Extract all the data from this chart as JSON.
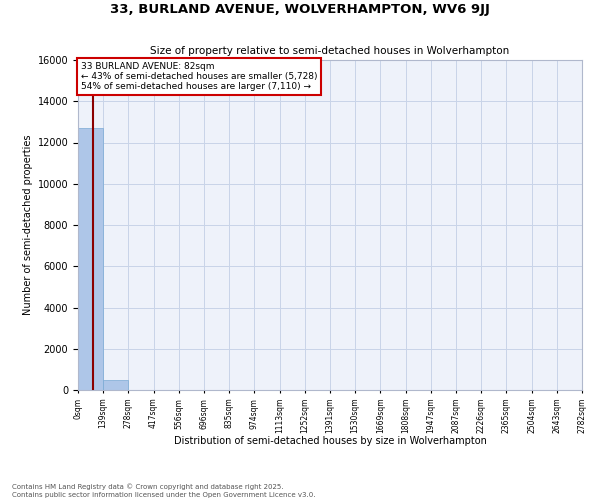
{
  "title": "33, BURLAND AVENUE, WOLVERHAMPTON, WV6 9JJ",
  "subtitle": "Size of property relative to semi-detached houses in Wolverhampton",
  "xlabel": "Distribution of semi-detached houses by size in Wolverhampton",
  "ylabel": "Number of semi-detached properties",
  "property_size": 82,
  "property_label": "33 BURLAND AVENUE: 82sqm",
  "pct_smaller": 43,
  "count_smaller": 5728,
  "pct_larger": 54,
  "count_larger": 7110,
  "bin_edges": [
    0,
    139,
    278,
    417,
    556,
    696,
    835,
    974,
    1113,
    1252,
    1391,
    1530,
    1669,
    1808,
    1947,
    2087,
    2226,
    2365,
    2504,
    2643,
    2782
  ],
  "bar_heights": [
    12700,
    500,
    0,
    0,
    0,
    0,
    0,
    0,
    0,
    0,
    0,
    0,
    0,
    0,
    0,
    0,
    0,
    0,
    0,
    0
  ],
  "bar_color": "#aec6e8",
  "bar_edgecolor": "#7aaad4",
  "line_color": "#8b0000",
  "annotation_box_color": "#cc0000",
  "background_color": "#eef2fa",
  "grid_color": "#c8d4e8",
  "ylim": [
    0,
    16000
  ],
  "yticks": [
    0,
    2000,
    4000,
    6000,
    8000,
    10000,
    12000,
    14000,
    16000
  ],
  "footer_line1": "Contains HM Land Registry data © Crown copyright and database right 2025.",
  "footer_line2": "Contains public sector information licensed under the Open Government Licence v3.0."
}
